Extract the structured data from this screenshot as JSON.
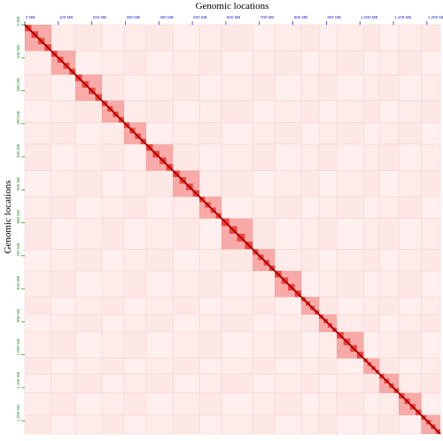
{
  "chart_data": {
    "type": "contact-map",
    "title": "Genomic locations",
    "ylabel": "Genomic locations",
    "xlim": [
      0,
      1240
    ],
    "ylim": [
      0,
      1240
    ],
    "xticks": [
      {
        "value": 0,
        "label": "0 MB"
      },
      {
        "value": 100,
        "label": "100 MB"
      },
      {
        "value": 200,
        "label": "200 MB"
      },
      {
        "value": 300,
        "label": "300 MB"
      },
      {
        "value": 400,
        "label": "400 MB"
      },
      {
        "value": 500,
        "label": "500 MB"
      },
      {
        "value": 600,
        "label": "600 MB"
      },
      {
        "value": 700,
        "label": "700 MB"
      },
      {
        "value": 800,
        "label": "800 MB"
      },
      {
        "value": 900,
        "label": "900 MB"
      },
      {
        "value": 1000,
        "label": "1,000 MB"
      },
      {
        "value": 1100,
        "label": "1,100 MB"
      },
      {
        "value": 1200,
        "label": "1,200 MB"
      }
    ],
    "yticks": [
      {
        "value": 0,
        "label": "0 MB"
      },
      {
        "value": 100,
        "label": "100 MB"
      },
      {
        "value": 200,
        "label": "200 MB"
      },
      {
        "value": 300,
        "label": "300 MB"
      },
      {
        "value": 400,
        "label": "400 MB"
      },
      {
        "value": 500,
        "label": "500 MB"
      },
      {
        "value": 600,
        "label": "600 MB"
      },
      {
        "value": 700,
        "label": "700 MB"
      },
      {
        "value": 800,
        "label": "800 MB"
      },
      {
        "value": 900,
        "label": "900 MB"
      },
      {
        "value": 1000,
        "label": "1,000 MB"
      },
      {
        "value": 1100,
        "label": "1,100 MB"
      },
      {
        "value": 1200,
        "label": "1,200 MB"
      }
    ],
    "boundaries": [
      0,
      79,
      151,
      230,
      296,
      362,
      442,
      521,
      587,
      680,
      746,
      825,
      878,
      931,
      1011,
      1058,
      1116,
      1183,
      1240
    ],
    "color": "#e8231c",
    "xtick_color": "#2b2bd0",
    "ytick_color": "#2a9a2a"
  }
}
